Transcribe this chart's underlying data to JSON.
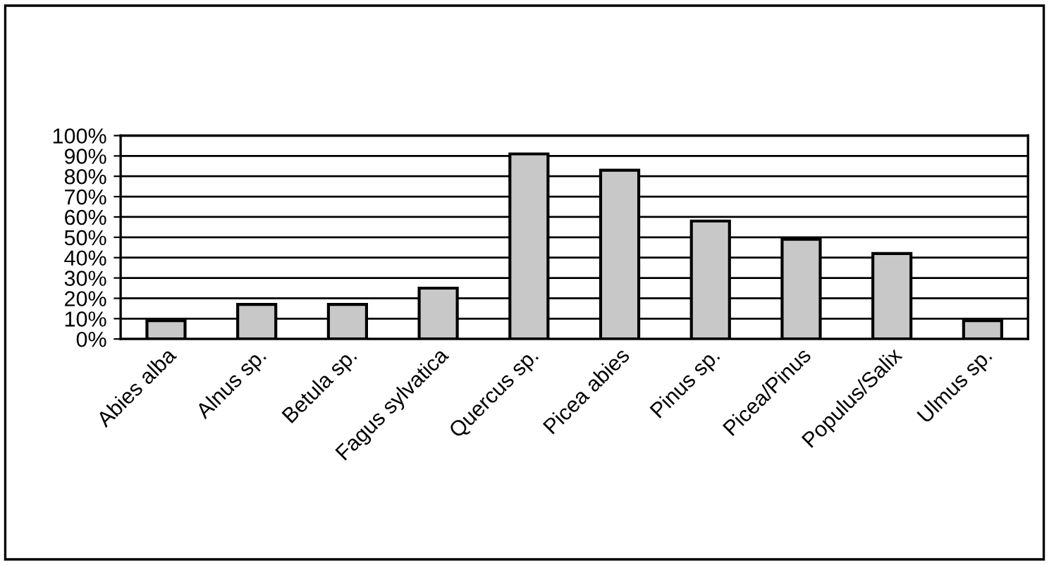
{
  "chart_data": {
    "type": "bar",
    "categories": [
      "Abies alba",
      "Alnus sp.",
      "Betula sp.",
      "Fagus sylvatica",
      "Quercus sp.",
      "Picea abies",
      "Pinus sp.",
      "Picea/Pinus",
      "Populus/Salix",
      "Ulmus sp."
    ],
    "values": [
      9,
      17,
      17,
      25,
      91,
      83,
      58,
      49,
      42,
      9
    ],
    "color": "#c8c8c8",
    "ylim": [
      0,
      100
    ],
    "yticks": [
      {
        "value": 0,
        "label": "0%"
      },
      {
        "value": 10,
        "label": "10%"
      },
      {
        "value": 20,
        "label": "20%"
      },
      {
        "value": 30,
        "label": "30%"
      },
      {
        "value": 40,
        "label": "40%"
      },
      {
        "value": 50,
        "label": "50%"
      },
      {
        "value": 60,
        "label": "60%"
      },
      {
        "value": 70,
        "label": "70%"
      },
      {
        "value": 80,
        "label": "80%"
      },
      {
        "value": 90,
        "label": "90%"
      },
      {
        "value": 100,
        "label": "100%"
      }
    ],
    "grid": "y"
  }
}
